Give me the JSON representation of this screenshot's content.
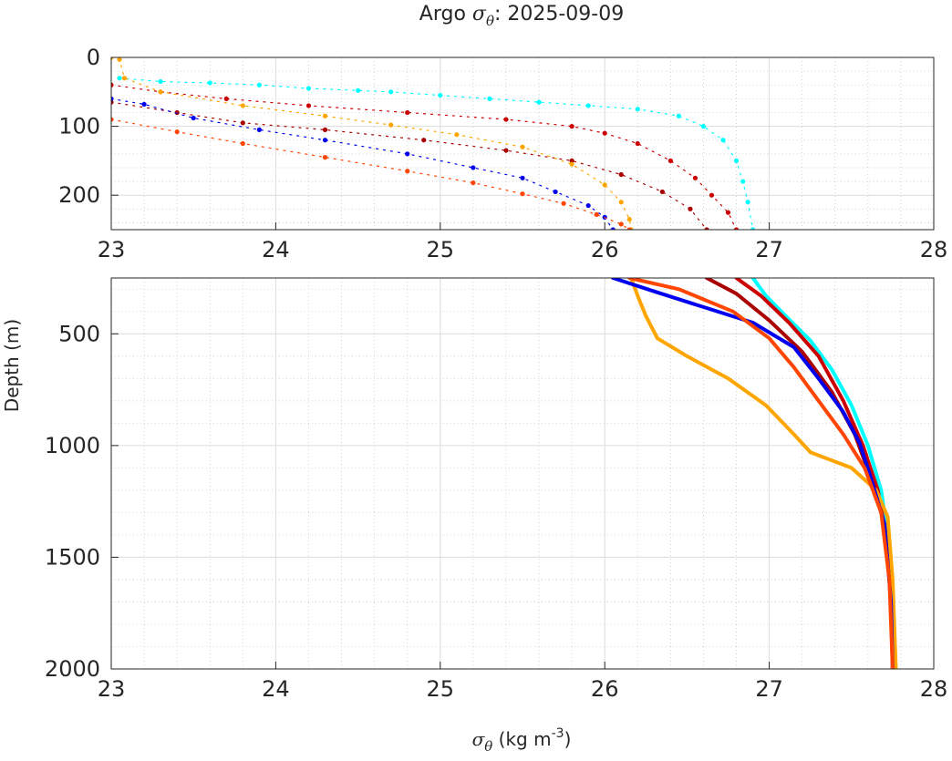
{
  "chart_data": {
    "type": "scatter",
    "title_prefix": "Argo ",
    "title_symbol": "σ",
    "title_subscript": "θ",
    "title_suffix": ": 2025-09-09",
    "xlabel_symbol": "σ",
    "xlabel_subscript": "θ",
    "xlabel_units": " (kg m",
    "xlabel_exponent": "-3",
    "xlabel_close": ")",
    "ylabel": "Depth (m)",
    "xlim": [
      23,
      28
    ],
    "x_ticks": [
      "23",
      "24",
      "25",
      "26",
      "27",
      "28"
    ],
    "y_reversed": true,
    "grid": true,
    "minor_grid": true,
    "panels": [
      {
        "ylim": [
          0,
          250
        ],
        "y_ticks": [
          0,
          100,
          200
        ],
        "y_tick_labels": [
          "0",
          "100",
          "200"
        ]
      },
      {
        "ylim": [
          250,
          2000
        ],
        "y_ticks": [
          500,
          1000,
          1500,
          2000
        ],
        "y_tick_labels": [
          "500",
          "1000",
          "1500",
          "2000"
        ]
      }
    ],
    "series": [
      {
        "color": "#00FFFF",
        "upper": [
          [
            23.05,
            30
          ],
          [
            23.3,
            35
          ],
          [
            23.6,
            37
          ],
          [
            23.9,
            40
          ],
          [
            24.2,
            45
          ],
          [
            24.5,
            48
          ],
          [
            24.7,
            50
          ],
          [
            25.0,
            55
          ],
          [
            25.3,
            60
          ],
          [
            25.6,
            65
          ],
          [
            25.9,
            70
          ],
          [
            26.2,
            75
          ],
          [
            26.45,
            85
          ],
          [
            26.6,
            100
          ],
          [
            26.72,
            120
          ],
          [
            26.8,
            150
          ],
          [
            26.84,
            180
          ],
          [
            26.87,
            210
          ],
          [
            26.9,
            250
          ]
        ],
        "lower": [
          [
            26.9,
            250
          ],
          [
            26.98,
            330
          ],
          [
            27.1,
            420
          ],
          [
            27.25,
            530
          ],
          [
            27.38,
            660
          ],
          [
            27.5,
            820
          ],
          [
            27.6,
            1000
          ],
          [
            27.68,
            1200
          ],
          [
            27.72,
            1400
          ],
          [
            27.74,
            1600
          ]
        ]
      },
      {
        "color": "#CC0000",
        "upper": [
          [
            23.0,
            40
          ],
          [
            23.3,
            50
          ],
          [
            23.7,
            60
          ],
          [
            24.2,
            70
          ],
          [
            24.8,
            80
          ],
          [
            25.4,
            90
          ],
          [
            25.8,
            100
          ],
          [
            26.0,
            110
          ],
          [
            26.2,
            125
          ],
          [
            26.4,
            150
          ],
          [
            26.55,
            175
          ],
          [
            26.65,
            200
          ],
          [
            26.75,
            225
          ],
          [
            26.8,
            250
          ]
        ],
        "lower": [
          [
            26.8,
            250
          ],
          [
            26.95,
            330
          ],
          [
            27.12,
            450
          ],
          [
            27.3,
            600
          ],
          [
            27.45,
            800
          ],
          [
            27.57,
            1000
          ],
          [
            27.66,
            1200
          ],
          [
            27.72,
            1450
          ],
          [
            27.75,
            1700
          ],
          [
            27.76,
            2000
          ]
        ]
      },
      {
        "color": "#AA0000",
        "upper": [
          [
            23.0,
            65
          ],
          [
            23.4,
            80
          ],
          [
            23.8,
            95
          ],
          [
            24.3,
            105
          ],
          [
            24.9,
            120
          ],
          [
            25.4,
            135
          ],
          [
            25.8,
            150
          ],
          [
            26.1,
            170
          ],
          [
            26.35,
            195
          ],
          [
            26.52,
            220
          ],
          [
            26.62,
            250
          ]
        ],
        "lower": [
          [
            26.62,
            250
          ],
          [
            26.8,
            320
          ],
          [
            27.0,
            440
          ],
          [
            27.2,
            580
          ],
          [
            27.38,
            760
          ],
          [
            27.52,
            950
          ],
          [
            27.62,
            1150
          ],
          [
            27.7,
            1350
          ],
          [
            27.74,
            1600
          ],
          [
            27.75,
            2000
          ]
        ]
      },
      {
        "color": "#FFA500",
        "upper": [
          [
            23.0,
            0
          ],
          [
            23.05,
            3
          ],
          [
            23.08,
            30
          ],
          [
            23.3,
            50
          ],
          [
            23.8,
            70
          ],
          [
            24.3,
            85
          ],
          [
            24.7,
            98
          ],
          [
            25.1,
            112
          ],
          [
            25.5,
            130
          ],
          [
            25.8,
            155
          ],
          [
            26.0,
            185
          ],
          [
            26.1,
            210
          ],
          [
            26.15,
            235
          ],
          [
            26.16,
            250
          ]
        ],
        "lower": [
          [
            26.16,
            250
          ],
          [
            26.2,
            330
          ],
          [
            26.25,
            420
          ],
          [
            26.32,
            520
          ],
          [
            26.5,
            600
          ],
          [
            26.75,
            700
          ],
          [
            26.98,
            820
          ],
          [
            27.15,
            950
          ],
          [
            27.25,
            1030
          ],
          [
            27.5,
            1100
          ],
          [
            27.65,
            1200
          ],
          [
            27.72,
            1320
          ],
          [
            27.75,
            1600
          ],
          [
            27.77,
            2000
          ]
        ]
      },
      {
        "color": "#0000EE",
        "upper": [
          [
            23.0,
            60
          ],
          [
            23.2,
            68
          ],
          [
            23.5,
            88
          ],
          [
            23.9,
            105
          ],
          [
            24.3,
            120
          ],
          [
            24.8,
            140
          ],
          [
            25.2,
            160
          ],
          [
            25.5,
            175
          ],
          [
            25.7,
            195
          ],
          [
            25.9,
            215
          ],
          [
            26.0,
            232
          ],
          [
            26.05,
            250
          ]
        ],
        "lower": [
          [
            26.05,
            250
          ],
          [
            26.3,
            310
          ],
          [
            26.6,
            380
          ],
          [
            26.9,
            450
          ],
          [
            27.15,
            560
          ],
          [
            27.3,
            700
          ],
          [
            27.45,
            850
          ],
          [
            27.55,
            990
          ],
          [
            27.62,
            1150
          ],
          [
            27.7,
            1350
          ],
          [
            27.74,
            1700
          ],
          [
            27.75,
            2000
          ]
        ]
      },
      {
        "color": "#FF4500",
        "upper": [
          [
            23.0,
            90
          ],
          [
            23.4,
            108
          ],
          [
            23.8,
            125
          ],
          [
            24.3,
            145
          ],
          [
            24.8,
            165
          ],
          [
            25.2,
            182
          ],
          [
            25.5,
            198
          ],
          [
            25.75,
            212
          ],
          [
            25.95,
            228
          ],
          [
            26.1,
            242
          ],
          [
            26.15,
            250
          ]
        ],
        "lower": [
          [
            26.15,
            250
          ],
          [
            26.45,
            300
          ],
          [
            26.78,
            400
          ],
          [
            27.0,
            520
          ],
          [
            27.15,
            650
          ],
          [
            27.3,
            800
          ],
          [
            27.45,
            950
          ],
          [
            27.58,
            1100
          ],
          [
            27.68,
            1300
          ],
          [
            27.73,
            1600
          ],
          [
            27.75,
            2000
          ]
        ]
      }
    ]
  }
}
